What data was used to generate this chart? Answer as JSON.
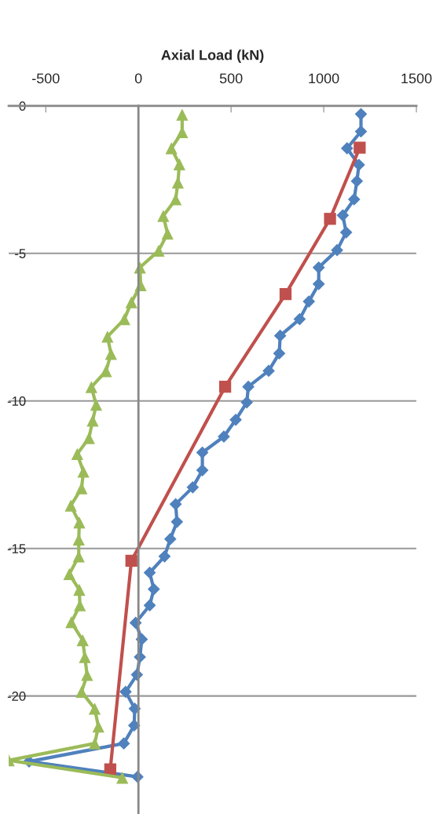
{
  "chart_data": {
    "type": "line",
    "xlabel": "Axial Load (kN)",
    "xlim": [
      -700,
      1500
    ],
    "xticks": [
      -500,
      0,
      500,
      1000,
      1500
    ],
    "ylim": [
      -24,
      0
    ],
    "yticks": [
      -20,
      -15,
      -10,
      -5,
      0
    ],
    "grid": "y",
    "line_style": "solid",
    "series": [
      {
        "color": "#4f81bd",
        "marker": "diamond",
        "x": [
          1201,
          1201,
          1126,
          1190,
          1179,
          1164,
          1103,
          1121,
          1072,
          973,
          973,
          920,
          870,
          765,
          760,
          703,
          593,
          585,
          525,
          461,
          345,
          345,
          293,
          201,
          208,
          172,
          141,
          61,
          83,
          61,
          -15,
          18,
          8,
          -8,
          -69,
          -20,
          -23,
          -79,
          -590,
          -5
        ],
        "values": [
          -0.28,
          -0.87,
          -1.44,
          -2.0,
          -2.55,
          -3.17,
          -3.71,
          -4.29,
          -4.89,
          -5.48,
          -6.04,
          -6.63,
          -7.23,
          -7.79,
          -8.39,
          -8.98,
          -9.52,
          -10.05,
          -10.64,
          -11.21,
          -11.75,
          -12.35,
          -12.93,
          -13.5,
          -14.1,
          -14.68,
          -15.27,
          -15.82,
          -16.38,
          -16.93,
          -17.52,
          -18.08,
          -18.68,
          -19.28,
          -19.86,
          -20.43,
          -21.0,
          -21.61,
          -22.22,
          -22.74
        ]
      },
      {
        "color": "#c0504d",
        "marker": "square",
        "x": [
          1194,
          1034,
          794,
          468,
          -38,
          -152
        ],
        "values": [
          -1.42,
          -3.83,
          -6.38,
          -9.52,
          -15.42,
          -22.49
        ]
      },
      {
        "color": "#9bbb59",
        "marker": "triangle",
        "x": [
          236,
          236,
          178,
          221,
          213,
          201,
          134,
          157,
          109,
          8,
          12,
          -38,
          -76,
          -167,
          -148,
          -175,
          -254,
          -228,
          -247,
          -267,
          -330,
          -297,
          -307,
          -365,
          -319,
          -322,
          -322,
          -373,
          -319,
          -316,
          -362,
          -301,
          -289,
          -277,
          -307,
          -236,
          -216,
          -236,
          -700,
          -87
        ],
        "values": [
          -0.3,
          -0.89,
          -1.44,
          -1.98,
          -2.6,
          -3.17,
          -3.73,
          -4.33,
          -4.91,
          -5.48,
          -6.08,
          -6.66,
          -7.23,
          -7.82,
          -8.41,
          -8.99,
          -9.53,
          -10.13,
          -10.67,
          -11.26,
          -11.8,
          -12.4,
          -12.96,
          -13.55,
          -14.12,
          -14.7,
          -15.27,
          -15.87,
          -16.4,
          -16.93,
          -17.5,
          -18.11,
          -18.68,
          -19.29,
          -19.86,
          -20.43,
          -21.04,
          -21.61,
          -22.18,
          -22.77
        ]
      }
    ]
  }
}
